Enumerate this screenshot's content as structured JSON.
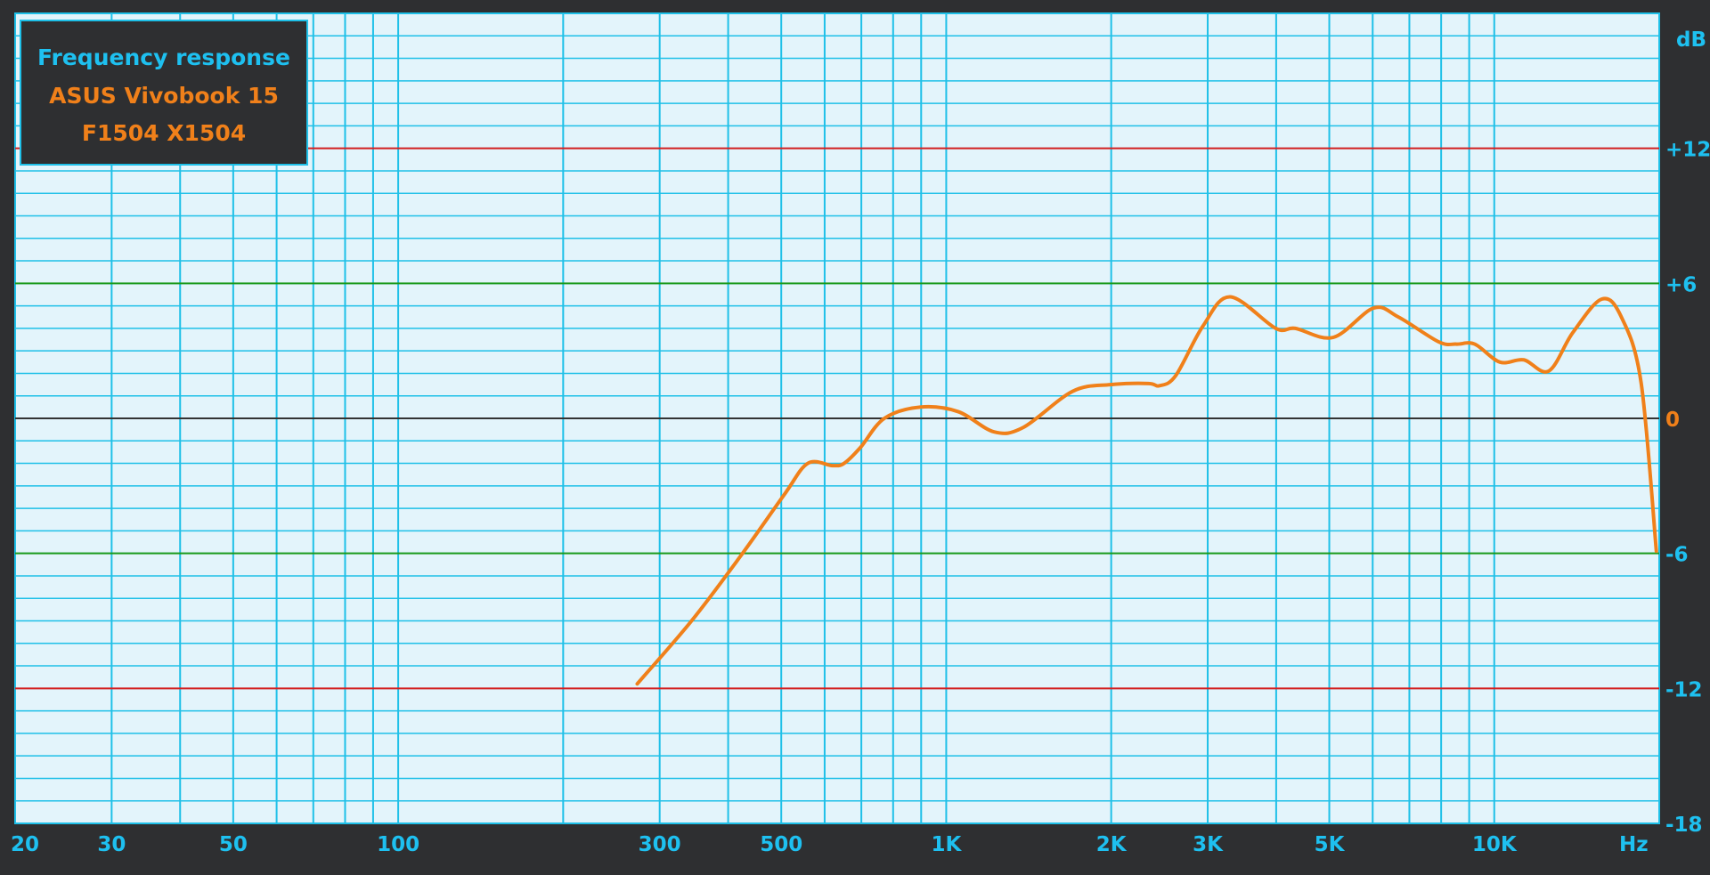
{
  "chart_data": {
    "type": "line",
    "title": "Frequency response",
    "subtitle_lines": [
      "ASUS Vivobook 15",
      "F1504 X1504"
    ],
    "xlabel": "Hz",
    "ylabel": "dB",
    "x_scale": "log",
    "xlim": [
      20,
      20000
    ],
    "ylim": [
      -18,
      18
    ],
    "grid": true,
    "x_tick_labels": [
      {
        "value": 20,
        "label": "20"
      },
      {
        "value": 30,
        "label": "30"
      },
      {
        "value": 50,
        "label": "50"
      },
      {
        "value": 100,
        "label": "100"
      },
      {
        "value": 300,
        "label": "300"
      },
      {
        "value": 500,
        "label": "500"
      },
      {
        "value": 1000,
        "label": "1K"
      },
      {
        "value": 2000,
        "label": "2K"
      },
      {
        "value": 3000,
        "label": "3K"
      },
      {
        "value": 5000,
        "label": "5K"
      },
      {
        "value": 10000,
        "label": "10K"
      }
    ],
    "y_tick_labels": [
      {
        "value": 12,
        "label": "+12",
        "line_color": "#d42020"
      },
      {
        "value": 6,
        "label": "+6",
        "line_color": "#1a9a1a"
      },
      {
        "value": 0,
        "label": "0",
        "line_color": "#333333"
      },
      {
        "value": -6,
        "label": "-6",
        "line_color": "#1a9a1a"
      },
      {
        "value": -12,
        "label": "-12",
        "line_color": "#d42020"
      },
      {
        "value": -18,
        "label": "-18"
      }
    ],
    "series": [
      {
        "color": "#f0801a",
        "x": [
          273,
          343,
          422,
          506,
          559,
          620,
          651,
          697,
          771,
          896,
          1051,
          1223,
          1383,
          1700,
          1994,
          2340,
          2450,
          2623,
          2940,
          3296,
          3993,
          4334,
          5086,
          6020,
          6690,
          7920,
          8530,
          9210,
          10240,
          11320,
          12570,
          13900,
          15710,
          17060,
          18530,
          19760
        ],
        "y": [
          -11.8,
          -9.0,
          -6.1,
          -3.4,
          -2.0,
          -2.1,
          -2.0,
          -1.3,
          0,
          0.5,
          0.3,
          -0.6,
          -0.4,
          1.2,
          1.5,
          1.55,
          1.45,
          1.9,
          4.1,
          5.4,
          4.0,
          4.0,
          3.6,
          4.9,
          4.5,
          3.4,
          3.3,
          3.3,
          2.5,
          2.6,
          2.1,
          3.8,
          5.3,
          4.5,
          1.6,
          -5.9
        ]
      }
    ]
  },
  "colors": {
    "background": "#2e2f31",
    "plot_bg": "#e3f4fb",
    "grid": "#1ec0e8",
    "accent": "#1ec0f0",
    "series": "#f0801a"
  }
}
